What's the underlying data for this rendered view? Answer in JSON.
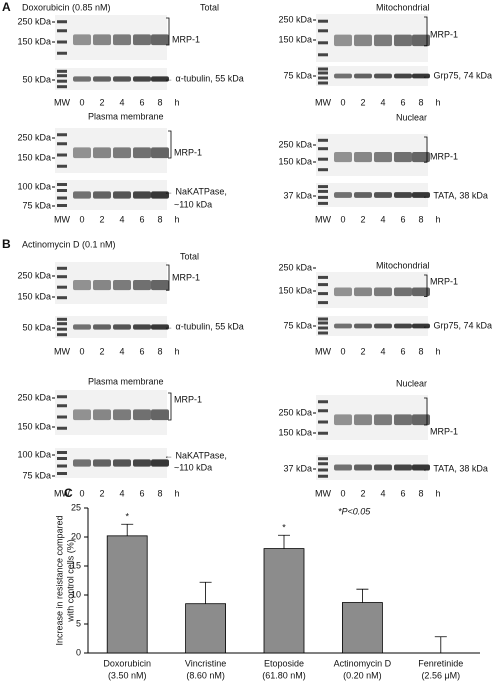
{
  "panel_a": {
    "label": "A",
    "treatment": "Doxorubicin (0.85 nM)",
    "blots": [
      {
        "title": "Total",
        "markers": [
          "250 kDa",
          "150 kDa",
          "50 kDa"
        ],
        "labels": [
          "MRP-1",
          "← α-tubulin, 55 kDa"
        ],
        "lanes": [
          "MW",
          "0",
          "2",
          "4",
          "6",
          "8",
          "h"
        ]
      },
      {
        "title": "Mitochondrial",
        "markers": [
          "250 kDa",
          "150 kDa",
          "75 kDa"
        ],
        "labels": [
          "MRP-1",
          "← Grp75, 74 kDa"
        ],
        "lanes": [
          "MW",
          "0",
          "2",
          "4",
          "6",
          "8",
          "h"
        ]
      },
      {
        "title": "Plasma membrane",
        "markers": [
          "250 kDa",
          "150 kDa",
          "100 kDa",
          "75 kDa"
        ],
        "labels": [
          "MRP-1",
          "← NaKATPase,",
          "~110 kDa"
        ],
        "lanes": [
          "MW",
          "0",
          "2",
          "4",
          "6",
          "8",
          "h"
        ]
      },
      {
        "title": "Nuclear",
        "markers": [
          "250 kDa",
          "150 kDa",
          "37 kDa"
        ],
        "labels": [
          "MRP-1",
          "← TATA, 38 kDa"
        ],
        "lanes": [
          "MW",
          "0",
          "2",
          "4",
          "6",
          "8",
          "h"
        ]
      }
    ]
  },
  "panel_b": {
    "label": "B",
    "treatment": "Actinomycin D (0.1 nM)",
    "blots": [
      {
        "title": "Total",
        "markers": [
          "250 kDa",
          "150 kDa",
          "50 kDa"
        ],
        "labels": [
          "MRP-1",
          "← α-tubulin, 55 kDa"
        ],
        "lanes": [
          "MW",
          "0",
          "2",
          "4",
          "6",
          "8",
          "h"
        ]
      },
      {
        "title": "Mitochondrial",
        "markers": [
          "250 kDa",
          "150 kDa",
          "75 kDa"
        ],
        "labels": [
          "MRP-1",
          "← Grp75, 74 kDa"
        ],
        "lanes": [
          "MW",
          "0",
          "2",
          "4",
          "6",
          "8",
          "h"
        ]
      },
      {
        "title": "Plasma membrane",
        "markers": [
          "250 kDa",
          "150 kDa",
          "100 kDa",
          "75 kDa"
        ],
        "labels": [
          "MRP-1",
          "← NaKATPase,",
          "~110 kDa"
        ],
        "lanes": [
          "MW",
          "0",
          "2",
          "4",
          "6",
          "8",
          "h"
        ]
      },
      {
        "title": "Nuclear",
        "markers": [
          "250 kDa",
          "150 kDa",
          "37 kDa"
        ],
        "labels": [
          "MRP-1",
          "← TATA, 38 kDa"
        ],
        "lanes": [
          "MW",
          "0",
          "2",
          "4",
          "6",
          "8",
          "h"
        ]
      }
    ]
  },
  "chart_data": {
    "type": "bar",
    "label": "C",
    "ylabel": [
      "Increase in resistance compared",
      "with control cells (%)"
    ],
    "categories": [
      "Doxorubicin",
      "Vincristine",
      "Etoposide",
      "Actinomycin D",
      "Fenretinide"
    ],
    "concentrations": [
      "(3.50 nM)",
      "(8.60 nM)",
      "(61.80 nM)",
      "(0.20 nM)",
      "(2.56 μM)"
    ],
    "values": [
      20.2,
      8.5,
      18,
      8.7,
      0
    ],
    "errors": [
      2,
      3.7,
      2.3,
      2.3,
      2.8
    ],
    "significance": [
      "*",
      null,
      "*",
      null,
      null
    ],
    "note": "*P<0.05",
    "color": "#8c8c8c",
    "ylim": [
      0,
      25
    ],
    "yticks": [
      0,
      5,
      10,
      15,
      20,
      25
    ]
  }
}
